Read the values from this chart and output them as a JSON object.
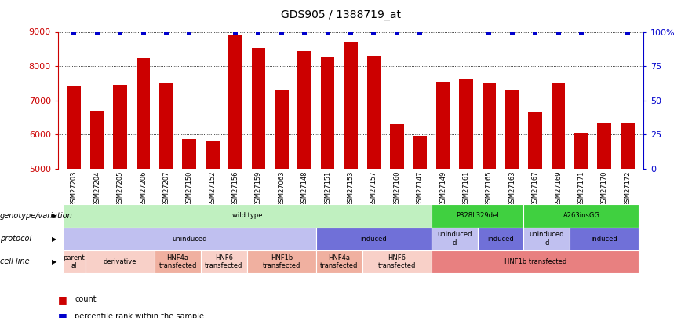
{
  "title": "GDS905 / 1388719_at",
  "samples": [
    "GSM27203",
    "GSM27204",
    "GSM27205",
    "GSM27206",
    "GSM27207",
    "GSM27150",
    "GSM27152",
    "GSM27156",
    "GSM27159",
    "GSM27063",
    "GSM27148",
    "GSM27151",
    "GSM27153",
    "GSM27157",
    "GSM27160",
    "GSM27147",
    "GSM27149",
    "GSM27161",
    "GSM27165",
    "GSM27163",
    "GSM27167",
    "GSM27169",
    "GSM27171",
    "GSM27170",
    "GSM27172"
  ],
  "counts": [
    7430,
    6680,
    7460,
    8240,
    7490,
    5870,
    5830,
    8890,
    8530,
    7310,
    8440,
    8280,
    8720,
    8300,
    6300,
    5960,
    7510,
    7600,
    7490,
    7290,
    6640,
    7490,
    6060,
    6330,
    6330
  ],
  "pct_high": [
    1,
    1,
    1,
    1,
    1,
    1,
    0,
    1,
    1,
    1,
    1,
    1,
    1,
    1,
    1,
    1,
    0,
    0,
    1,
    1,
    1,
    1,
    1,
    0,
    1
  ],
  "bar_color": "#cc0000",
  "pct_color": "#0000cc",
  "ymin": 5000,
  "ymax": 9000,
  "yticks": [
    5000,
    6000,
    7000,
    8000,
    9000
  ],
  "right_axis_labels": [
    "0",
    "25",
    "50",
    "75",
    "100%"
  ],
  "right_axis_color": "#0000cc",
  "annotation_rows": [
    {
      "label": "genotype/variation",
      "segments": [
        {
          "text": "wild type",
          "start": 0,
          "end": 16,
          "color": "#c0f0c0"
        },
        {
          "text": "P328L329del",
          "start": 16,
          "end": 20,
          "color": "#40d040"
        },
        {
          "text": "A263insGG",
          "start": 20,
          "end": 25,
          "color": "#40d040"
        }
      ]
    },
    {
      "label": "protocol",
      "segments": [
        {
          "text": "uninduced",
          "start": 0,
          "end": 11,
          "color": "#c0c0f0"
        },
        {
          "text": "induced",
          "start": 11,
          "end": 16,
          "color": "#7070d8"
        },
        {
          "text": "uninduced\nd",
          "start": 16,
          "end": 18,
          "color": "#c0c0f0"
        },
        {
          "text": "induced",
          "start": 18,
          "end": 20,
          "color": "#7070d8"
        },
        {
          "text": "uninduced\nd",
          "start": 20,
          "end": 22,
          "color": "#c0c0f0"
        },
        {
          "text": "induced",
          "start": 22,
          "end": 25,
          "color": "#7070d8"
        }
      ]
    },
    {
      "label": "cell line",
      "segments": [
        {
          "text": "parent\nal",
          "start": 0,
          "end": 1,
          "color": "#f8d0c8"
        },
        {
          "text": "derivative",
          "start": 1,
          "end": 4,
          "color": "#f8d0c8"
        },
        {
          "text": "HNF4a\ntransfected",
          "start": 4,
          "end": 6,
          "color": "#f0b0a0"
        },
        {
          "text": "HNF6\ntransfected",
          "start": 6,
          "end": 8,
          "color": "#f8d0c8"
        },
        {
          "text": "HNF1b\ntransfected",
          "start": 8,
          "end": 11,
          "color": "#f0b0a0"
        },
        {
          "text": "HNF4a\ntransfected",
          "start": 11,
          "end": 13,
          "color": "#f0b0a0"
        },
        {
          "text": "HNF6\ntransfected",
          "start": 13,
          "end": 16,
          "color": "#f8d0c8"
        },
        {
          "text": "HNF1b transfected",
          "start": 16,
          "end": 25,
          "color": "#e88080"
        }
      ]
    }
  ],
  "legend": [
    {
      "color": "#cc0000",
      "label": "count"
    },
    {
      "color": "#0000cc",
      "label": "percentile rank within the sample"
    }
  ]
}
